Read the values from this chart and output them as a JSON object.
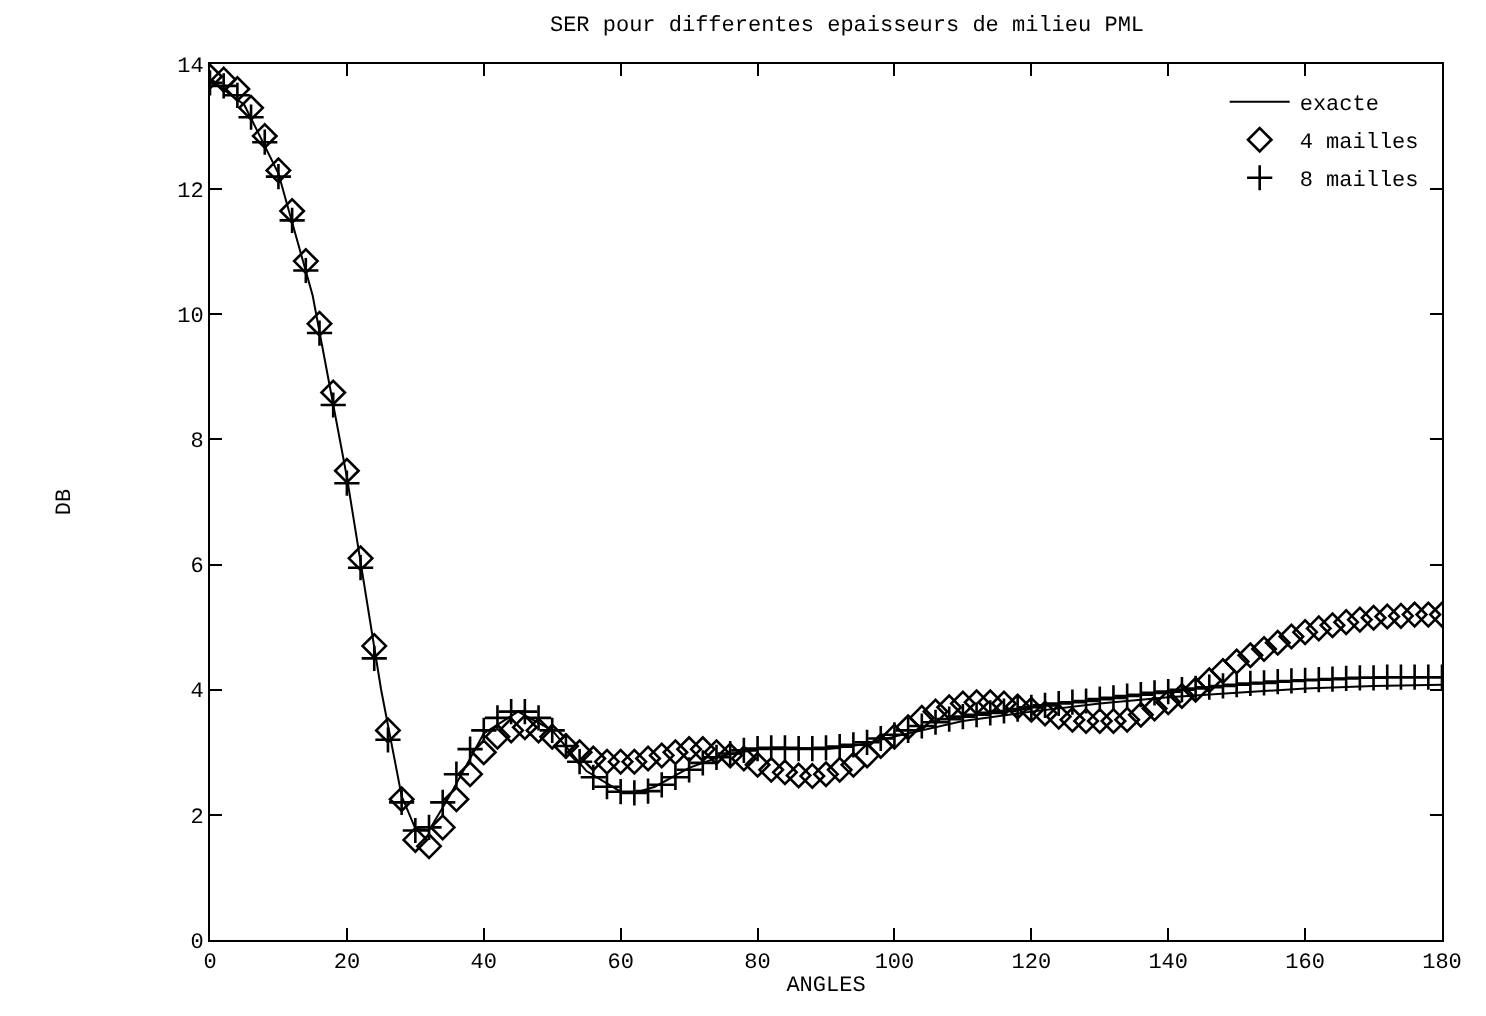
{
  "chart_data": {
    "type": "line",
    "title": "SER pour differentes epaisseurs de milieu PML",
    "xlabel": "ANGLES",
    "ylabel": "DB",
    "xlim": [
      0,
      180
    ],
    "ylim": [
      0,
      14
    ],
    "xticks": [
      0,
      20,
      40,
      60,
      80,
      100,
      120,
      140,
      160,
      180
    ],
    "yticks": [
      0,
      2,
      4,
      6,
      8,
      10,
      12,
      14
    ],
    "grid": false,
    "legend": "top right",
    "series": [
      {
        "name": "exacte",
        "color": "#000000",
        "marker": "none",
        "x": [
          0,
          5,
          10,
          15,
          20,
          25,
          28,
          30,
          32,
          35,
          40,
          45,
          50,
          55,
          60,
          62,
          65,
          70,
          75,
          80,
          85,
          90,
          95,
          100,
          110,
          120,
          130,
          140,
          150,
          160,
          170,
          180
        ],
        "values": [
          13.75,
          13.35,
          12.25,
          10.3,
          7.4,
          4.0,
          2.3,
          1.78,
          1.75,
          2.3,
          3.3,
          3.65,
          3.35,
          2.7,
          2.37,
          2.35,
          2.45,
          2.75,
          2.95,
          3.05,
          3.05,
          3.05,
          3.12,
          3.25,
          3.5,
          3.65,
          3.78,
          3.88,
          3.95,
          4.02,
          4.06,
          4.08
        ]
      },
      {
        "name": "4 mailles",
        "color": "#000000",
        "type": "scatter",
        "marker": "diamond",
        "values": [
          13.8,
          13.75,
          13.6,
          13.3,
          12.85,
          12.3,
          11.65,
          10.85,
          9.85,
          8.75,
          7.5,
          6.1,
          4.7,
          3.35,
          2.25,
          1.6,
          1.5,
          1.8,
          2.25,
          2.65,
          3.0,
          3.25,
          3.35,
          3.4,
          3.35,
          3.25,
          3.1,
          3.0,
          2.9,
          2.85,
          2.85,
          2.85,
          2.9,
          2.95,
          3.0,
          3.05,
          3.05,
          3.0,
          2.95,
          2.9,
          2.8,
          2.72,
          2.68,
          2.63,
          2.62,
          2.65,
          2.72,
          2.8,
          2.95,
          3.1,
          3.25,
          3.4,
          3.55,
          3.65,
          3.72,
          3.78,
          3.8,
          3.8,
          3.78,
          3.73,
          3.68,
          3.62,
          3.57,
          3.52,
          3.5,
          3.5,
          3.5,
          3.52,
          3.6,
          3.7,
          3.8,
          3.9,
          4.0,
          4.15,
          4.3,
          4.45,
          4.55,
          4.65,
          4.75,
          4.85,
          4.92,
          4.98,
          5.03,
          5.08,
          5.12,
          5.15,
          5.17,
          5.18,
          5.2,
          5.2,
          5.2
        ]
      },
      {
        "name": "8 mailles",
        "color": "#000000",
        "type": "scatter",
        "marker": "cross",
        "values": [
          13.7,
          13.65,
          13.5,
          13.15,
          12.75,
          12.2,
          11.5,
          10.7,
          9.7,
          8.55,
          7.3,
          5.95,
          4.5,
          3.2,
          2.2,
          1.75,
          1.8,
          2.2,
          2.65,
          3.05,
          3.35,
          3.55,
          3.65,
          3.65,
          3.55,
          3.35,
          3.1,
          2.85,
          2.6,
          2.45,
          2.37,
          2.35,
          2.38,
          2.48,
          2.6,
          2.72,
          2.83,
          2.92,
          2.98,
          3.03,
          3.06,
          3.07,
          3.07,
          3.06,
          3.06,
          3.07,
          3.09,
          3.12,
          3.16,
          3.22,
          3.28,
          3.35,
          3.42,
          3.48,
          3.53,
          3.57,
          3.6,
          3.63,
          3.66,
          3.69,
          3.72,
          3.75,
          3.78,
          3.8,
          3.82,
          3.85,
          3.87,
          3.9,
          3.92,
          3.95,
          3.97,
          4.0,
          4.02,
          4.04,
          4.06,
          4.08,
          4.1,
          4.11,
          4.13,
          4.14,
          4.15,
          4.16,
          4.17,
          4.18,
          4.19,
          4.19,
          4.2,
          4.2,
          4.2,
          4.2,
          4.2
        ]
      }
    ],
    "x": [
      0,
      2,
      4,
      6,
      8,
      10,
      12,
      14,
      16,
      18,
      20,
      22,
      24,
      26,
      28,
      30,
      32,
      34,
      36,
      38,
      40,
      42,
      44,
      46,
      48,
      50,
      52,
      54,
      56,
      58,
      60,
      62,
      64,
      66,
      68,
      70,
      72,
      74,
      76,
      78,
      80,
      82,
      84,
      86,
      88,
      90,
      92,
      94,
      96,
      98,
      100,
      102,
      104,
      106,
      108,
      110,
      112,
      114,
      116,
      118,
      120,
      122,
      124,
      126,
      128,
      130,
      132,
      134,
      136,
      138,
      140,
      142,
      144,
      146,
      148,
      150,
      152,
      154,
      156,
      158,
      160,
      162,
      164,
      166,
      168,
      170,
      172,
      174,
      176,
      178,
      180
    ]
  }
}
